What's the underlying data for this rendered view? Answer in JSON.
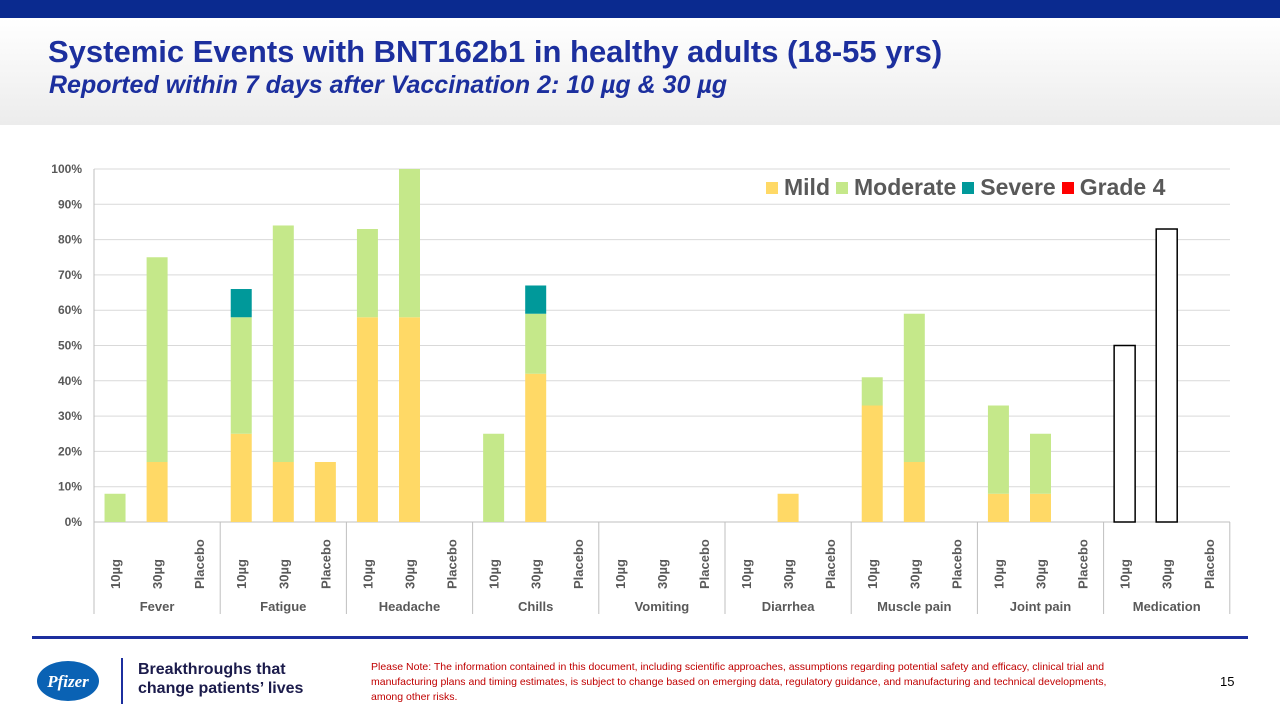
{
  "header": {
    "title": "Systemic Events with BNT162b1 in healthy adults (18-55 yrs)",
    "subtitle": "Reported within 7 days after Vaccination 2: 10 µg & 30 µg"
  },
  "legend": [
    {
      "name": "Mild",
      "color": "#ffd966"
    },
    {
      "name": "Moderate",
      "color": "#c5e88a"
    },
    {
      "name": "Severe",
      "color": "#00999a"
    },
    {
      "name": "Grade 4",
      "color": "#ff0000"
    }
  ],
  "chart_data": {
    "type": "bar",
    "stacked": true,
    "yticks": [
      "0%",
      "10%",
      "20%",
      "30%",
      "40%",
      "50%",
      "60%",
      "70%",
      "80%",
      "90%",
      "100%"
    ],
    "ylim": [
      0,
      100
    ],
    "grid": true,
    "legend_position": "top-right",
    "groups": [
      "Fever",
      "Fatigue",
      "Headache",
      "Chills",
      "Vomiting",
      "Diarrhea",
      "Muscle pain",
      "Joint pain",
      "Medication"
    ],
    "subcategories": [
      "10µg",
      "30µg",
      "Placebo"
    ],
    "series": [
      {
        "name": "Mild",
        "color": "#ffd966",
        "values": [
          [
            0,
            17,
            0
          ],
          [
            25,
            17,
            17
          ],
          [
            58,
            58,
            0
          ],
          [
            0,
            42,
            0
          ],
          [
            0,
            0,
            0
          ],
          [
            0,
            8,
            0
          ],
          [
            33,
            17,
            0
          ],
          [
            8,
            8,
            0
          ],
          [
            0,
            0,
            0
          ]
        ]
      },
      {
        "name": "Moderate",
        "color": "#c5e88a",
        "values": [
          [
            8,
            58,
            0
          ],
          [
            33,
            67,
            0
          ],
          [
            25,
            42,
            0
          ],
          [
            25,
            17,
            0
          ],
          [
            0,
            0,
            0
          ],
          [
            0,
            0,
            0
          ],
          [
            8,
            42,
            0
          ],
          [
            25,
            17,
            0
          ],
          [
            0,
            0,
            0
          ]
        ]
      },
      {
        "name": "Severe",
        "color": "#00999a",
        "values": [
          [
            0,
            0,
            0
          ],
          [
            8,
            0,
            0
          ],
          [
            0,
            0,
            0
          ],
          [
            0,
            8,
            0
          ],
          [
            0,
            0,
            0
          ],
          [
            0,
            0,
            0
          ],
          [
            0,
            0,
            0
          ],
          [
            0,
            0,
            0
          ],
          [
            0,
            0,
            0
          ]
        ]
      },
      {
        "name": "Grade 4",
        "color": "#ff0000",
        "values": [
          [
            0,
            0,
            0
          ],
          [
            0,
            0,
            0
          ],
          [
            0,
            0,
            0
          ],
          [
            0,
            0,
            0
          ],
          [
            0,
            0,
            0
          ],
          [
            0,
            0,
            0
          ],
          [
            0,
            0,
            0
          ],
          [
            0,
            0,
            0
          ],
          [
            0,
            0,
            0
          ]
        ]
      }
    ],
    "medication": [
      50,
      83,
      0
    ]
  },
  "footer": {
    "tagline_line1": "Breakthroughs that",
    "tagline_line2": "change patients’ lives",
    "disclaimer": "Please Note: The information contained in this document, including scientific approaches, assumptions regarding potential safety and efficacy, clinical trial and manufacturing plans and timing estimates, is subject to change based on emerging data, regulatory guidance, and manufacturing and technical developments, among other risks.",
    "page_number": "15",
    "logo_text": "Pfizer",
    "logo_color": "#0a62b4"
  }
}
